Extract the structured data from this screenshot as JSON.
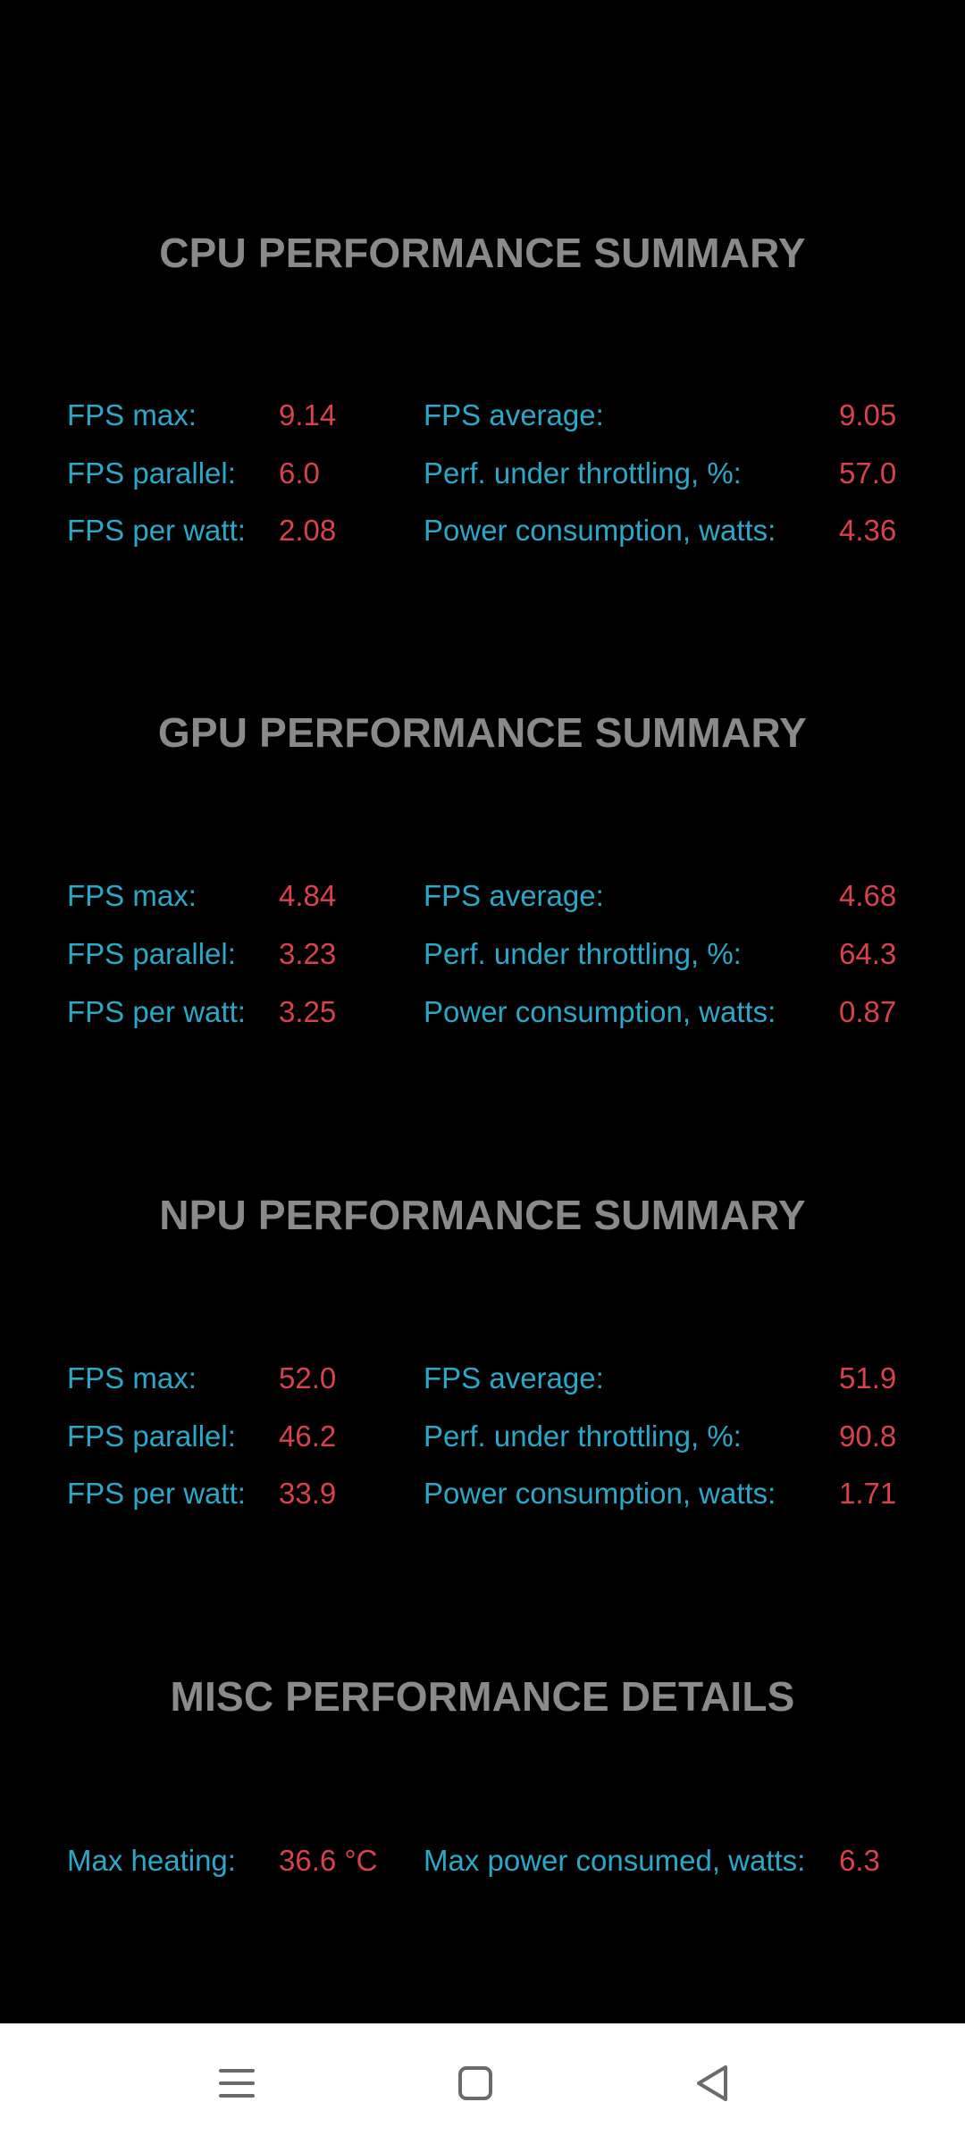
{
  "sections": [
    {
      "title": "CPU PERFORMANCE SUMMARY",
      "rows": [
        {
          "label1": "FPS max:",
          "value1": "9.14",
          "label2": "FPS average:",
          "value2": "9.05"
        },
        {
          "label1": "FPS parallel:",
          "value1": "6.0",
          "label2": "Perf. under throttling, %:",
          "value2": "57.0"
        },
        {
          "label1": "FPS per watt:",
          "value1": "2.08",
          "label2": "Power consumption, watts:",
          "value2": "4.36"
        }
      ]
    },
    {
      "title": "GPU PERFORMANCE SUMMARY",
      "rows": [
        {
          "label1": "FPS max:",
          "value1": "4.84",
          "label2": "FPS average:",
          "value2": "4.68"
        },
        {
          "label1": "FPS parallel:",
          "value1": "3.23",
          "label2": "Perf. under throttling, %:",
          "value2": "64.3"
        },
        {
          "label1": "FPS per watt:",
          "value1": "3.25",
          "label2": "Power consumption, watts:",
          "value2": "0.87"
        }
      ]
    },
    {
      "title": "NPU PERFORMANCE SUMMARY",
      "rows": [
        {
          "label1": "FPS max:",
          "value1": "52.0",
          "label2": "FPS average:",
          "value2": "51.9"
        },
        {
          "label1": "FPS parallel:",
          "value1": "46.2",
          "label2": "Perf. under throttling, %:",
          "value2": "90.8"
        },
        {
          "label1": "FPS per watt:",
          "value1": "33.9",
          "label2": "Power consumption, watts:",
          "value2": "1.71"
        }
      ]
    },
    {
      "title": "MISC PERFORMANCE DETAILS",
      "rows": [
        {
          "label1": "Max heating:",
          "value1": "36.6 °C",
          "label2": "Max power consumed, watts:",
          "value2": "6.3"
        }
      ]
    }
  ],
  "navbar": {
    "recents_icon": "menu-lines-icon",
    "home_icon": "rounded-square-icon",
    "back_icon": "triangle-back-icon"
  },
  "colors": {
    "background": "#000000",
    "title": "#8a8a8a",
    "label": "#2aa8c9",
    "value": "#d9424c",
    "navbar_bg": "#ffffff",
    "navbar_icon": "#6b6b6b"
  }
}
